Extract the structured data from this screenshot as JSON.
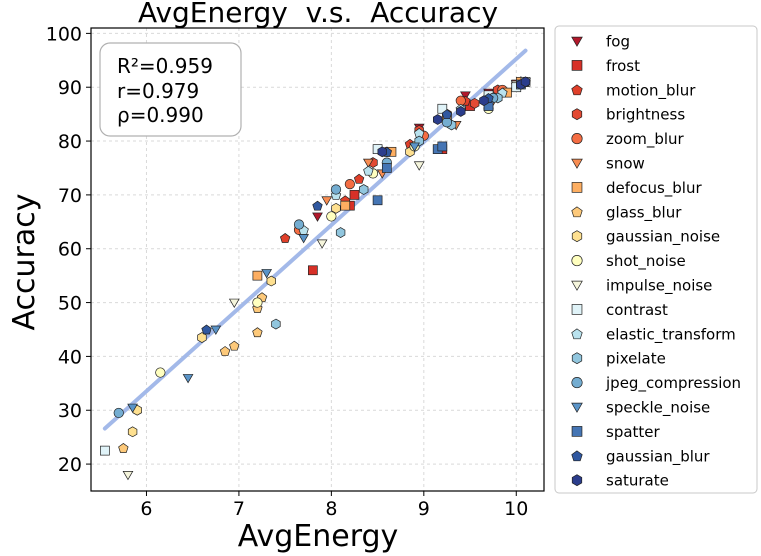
{
  "chart_data": {
    "type": "scatter",
    "title": "AvgEnergy  v.s.  Accuracy",
    "xlabel": "AvgEnergy",
    "ylabel": "Accuracy",
    "xlim": [
      5.4,
      10.3
    ],
    "ylim": [
      15,
      101
    ],
    "xticks": [
      6,
      7,
      8,
      9,
      10
    ],
    "yticks": [
      20,
      30,
      40,
      50,
      60,
      70,
      80,
      90,
      100
    ],
    "grid": true,
    "legend_position": "outside-right",
    "stats": {
      "r2": "R²=0.959",
      "r": "r=0.979",
      "rho": "ρ=0.990"
    },
    "fit_line": {
      "color": "#9fb6e8",
      "points": [
        [
          5.55,
          26.6
        ],
        [
          10.1,
          96.8
        ]
      ]
    },
    "series": [
      {
        "name": "fog",
        "marker": "triangle-down",
        "color": "#b2182b",
        "points": [
          [
            7.85,
            66
          ],
          [
            8.95,
            82.5
          ],
          [
            9.45,
            88.5
          ],
          [
            9.7,
            89
          ],
          [
            10.0,
            90.6
          ],
          [
            10.1,
            91
          ]
        ]
      },
      {
        "name": "frost",
        "marker": "square",
        "color": "#d73027",
        "points": [
          [
            7.8,
            56
          ],
          [
            8.2,
            68
          ],
          [
            8.25,
            70
          ],
          [
            9.2,
            78.5
          ],
          [
            9.5,
            86.5
          ],
          [
            10.0,
            90.5
          ]
        ]
      },
      {
        "name": "motion_blur",
        "marker": "pentagon",
        "color": "#e0402a",
        "points": [
          [
            7.5,
            62
          ],
          [
            8.15,
            69
          ],
          [
            8.3,
            73
          ],
          [
            8.85,
            79.5
          ],
          [
            9.45,
            87.5
          ],
          [
            10.1,
            91
          ]
        ]
      },
      {
        "name": "brightness",
        "marker": "hexagon",
        "color": "#e34a33",
        "points": [
          [
            8.45,
            76
          ],
          [
            8.95,
            82
          ],
          [
            9.25,
            85
          ],
          [
            9.55,
            87
          ],
          [
            9.8,
            89.5
          ],
          [
            10.05,
            91
          ]
        ]
      },
      {
        "name": "zoom_blur",
        "marker": "circle",
        "color": "#f46d43",
        "points": [
          [
            7.65,
            63.5
          ],
          [
            8.2,
            72
          ],
          [
            8.6,
            78
          ],
          [
            9.0,
            81
          ],
          [
            9.4,
            87.5
          ],
          [
            9.85,
            89.5
          ]
        ]
      },
      {
        "name": "snow",
        "marker": "triangle-down",
        "color": "#f88d52",
        "points": [
          [
            7.95,
            69
          ],
          [
            8.4,
            76
          ],
          [
            8.55,
            74
          ],
          [
            9.35,
            83
          ],
          [
            9.75,
            87.5
          ],
          [
            10.0,
            90
          ]
        ]
      },
      {
        "name": "defocus_blur",
        "marker": "square",
        "color": "#fdae61",
        "points": [
          [
            7.2,
            55
          ],
          [
            8.15,
            68
          ],
          [
            8.65,
            78
          ],
          [
            9.25,
            84.5
          ],
          [
            9.9,
            89
          ],
          [
            10.05,
            91
          ]
        ]
      },
      {
        "name": "glass_blur",
        "marker": "pentagon",
        "color": "#fdc97a",
        "points": [
          [
            5.75,
            23
          ],
          [
            6.85,
            41
          ],
          [
            6.95,
            42
          ],
          [
            7.2,
            44.5
          ],
          [
            7.2,
            49
          ],
          [
            7.25,
            51
          ]
        ]
      },
      {
        "name": "gaussian_noise",
        "marker": "hexagon",
        "color": "#fee090",
        "points": [
          [
            5.85,
            26
          ],
          [
            5.9,
            30
          ],
          [
            6.6,
            43.5
          ],
          [
            7.35,
            54
          ],
          [
            8.05,
            67.5
          ],
          [
            8.85,
            78
          ]
        ]
      },
      {
        "name": "shot_noise",
        "marker": "circle",
        "color": "#ffffbf",
        "points": [
          [
            6.15,
            37
          ],
          [
            7.2,
            50
          ],
          [
            8.0,
            66
          ],
          [
            8.45,
            74
          ],
          [
            8.9,
            79
          ],
          [
            9.7,
            86
          ]
        ]
      },
      {
        "name": "impulse_noise",
        "marker": "triangle-down",
        "color": "#f5f5dc",
        "points": [
          [
            5.8,
            18
          ],
          [
            6.95,
            50
          ],
          [
            7.9,
            61
          ],
          [
            8.95,
            75.5
          ],
          [
            9.75,
            88
          ],
          [
            10.0,
            90.5
          ]
        ]
      },
      {
        "name": "contrast",
        "marker": "square",
        "color": "#e0f3f8",
        "points": [
          [
            5.55,
            22.5
          ],
          [
            8.5,
            78.5
          ],
          [
            9.2,
            86
          ],
          [
            9.7,
            88.5
          ],
          [
            10.0,
            90
          ],
          [
            10.1,
            91
          ]
        ]
      },
      {
        "name": "elastic_transform",
        "marker": "pentagon",
        "color": "#b9e2ee",
        "points": [
          [
            7.7,
            63.5
          ],
          [
            8.05,
            70
          ],
          [
            8.4,
            74.5
          ],
          [
            8.95,
            81.5
          ],
          [
            9.4,
            86
          ],
          [
            9.85,
            89
          ]
        ]
      },
      {
        "name": "pixelate",
        "marker": "hexagon",
        "color": "#91c6de",
        "points": [
          [
            7.4,
            46
          ],
          [
            8.1,
            63
          ],
          [
            8.35,
            71
          ],
          [
            8.95,
            80
          ],
          [
            9.3,
            83
          ],
          [
            9.8,
            88
          ]
        ]
      },
      {
        "name": "jpeg_compression",
        "marker": "circle",
        "color": "#74add1",
        "points": [
          [
            5.7,
            29.5
          ],
          [
            7.65,
            64.5
          ],
          [
            8.05,
            71
          ],
          [
            8.6,
            76
          ],
          [
            9.25,
            83.5
          ],
          [
            9.75,
            88
          ]
        ]
      },
      {
        "name": "speckle_noise",
        "marker": "triangle-down",
        "color": "#5a94c8",
        "points": [
          [
            5.85,
            30.5
          ],
          [
            6.45,
            36
          ],
          [
            6.75,
            45
          ],
          [
            7.3,
            55.5
          ],
          [
            7.7,
            62
          ],
          [
            8.9,
            79
          ]
        ]
      },
      {
        "name": "spatter",
        "marker": "square",
        "color": "#4575b4",
        "points": [
          [
            8.5,
            69
          ],
          [
            8.6,
            75
          ],
          [
            9.15,
            78.5
          ],
          [
            9.2,
            79
          ],
          [
            9.7,
            86.5
          ],
          [
            10.05,
            90.5
          ]
        ]
      },
      {
        "name": "gaussian_blur",
        "marker": "pentagon",
        "color": "#3058a0",
        "points": [
          [
            6.65,
            45
          ],
          [
            7.85,
            68
          ],
          [
            8.6,
            78
          ],
          [
            9.25,
            85
          ],
          [
            9.7,
            88
          ],
          [
            10.1,
            91
          ]
        ]
      },
      {
        "name": "saturate",
        "marker": "hexagon",
        "color": "#2b3d8c",
        "points": [
          [
            8.55,
            78
          ],
          [
            9.15,
            84
          ],
          [
            9.4,
            85.5
          ],
          [
            9.65,
            87.5
          ],
          [
            10.05,
            90.5
          ],
          [
            10.1,
            91
          ]
        ]
      }
    ]
  }
}
